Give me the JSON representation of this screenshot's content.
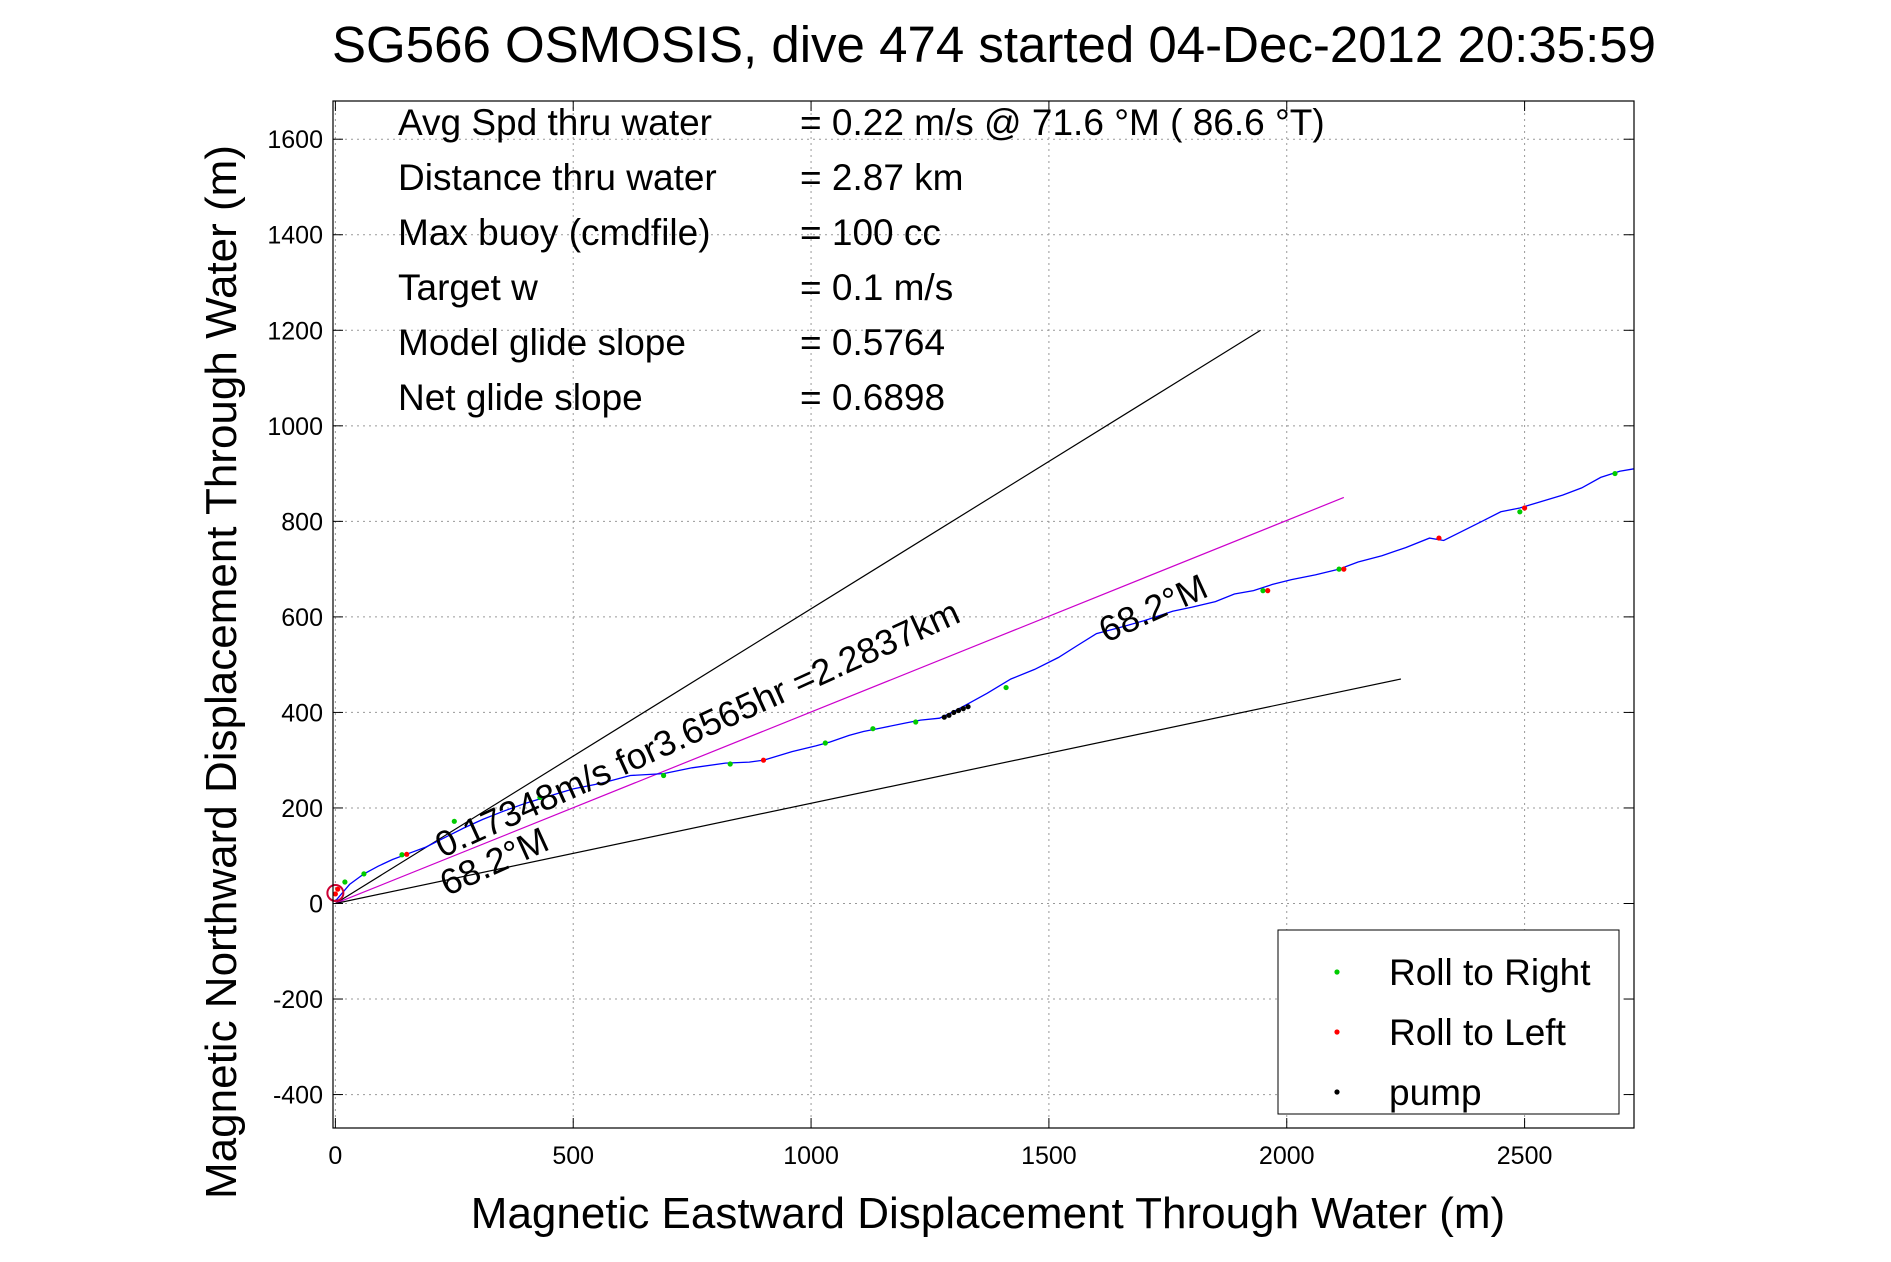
{
  "chart_data": {
    "type": "line",
    "title": "SG566 OSMOSIS, dive 474 started 04-Dec-2012 20:35:59",
    "xlabel": "Magnetic Eastward Displacement Through Water (m)",
    "ylabel": "Magnetic Northward Displacement Through Water (m)",
    "xlim": [
      -5,
      2730
    ],
    "ylim": [
      -470,
      1680
    ],
    "xticks": [
      0,
      500,
      1000,
      1500,
      2000,
      2500
    ],
    "yticks": [
      -400,
      -200,
      0,
      200,
      400,
      600,
      800,
      1000,
      1200,
      1400,
      1600
    ],
    "grid": true,
    "legend_position": "bottom-right",
    "stats": [
      {
        "label": "Avg Spd thru water",
        "value": "=  0.22 m/s @  71.6 °M ( 86.6 °T)"
      },
      {
        "label": "Distance thru water",
        "value": "=  2.87 km"
      },
      {
        "label": "Max buoy (cmdfile)",
        "value": "= 100 cc"
      },
      {
        "label": "Target w",
        "value": "= 0.1 m/s"
      },
      {
        "label": "Model glide slope",
        "value": "= 0.5764"
      },
      {
        "label": "Net glide slope",
        "value": "= 0.6898"
      }
    ],
    "annotations": [
      {
        "text": "0.17348m/s for3.6565hr =2.2837km",
        "x": 225,
        "y": 95,
        "angle_deg": 24.5
      },
      {
        "text": "68.2°M",
        "x": 235,
        "y": 15,
        "angle_deg": 24.5
      },
      {
        "text": "68.2°M",
        "x": 1620,
        "y": 545,
        "angle_deg": 24.5
      }
    ],
    "series": [
      {
        "name": "track",
        "color": "#0000ff",
        "x": [
          0,
          30,
          60,
          90,
          120,
          155,
          190,
          230,
          270,
          310,
          350,
          400,
          450,
          500,
          560,
          620,
          690,
          750,
          820,
          870,
          900,
          960,
          1010,
          1040,
          1080,
          1110,
          1150,
          1200,
          1230,
          1270,
          1300,
          1330,
          1370,
          1420,
          1470,
          1520,
          1560,
          1600,
          1650,
          1700,
          1760,
          1800,
          1850,
          1890,
          1930,
          1970,
          2010,
          2060,
          2110,
          2150,
          2200,
          2250,
          2300,
          2330,
          2370,
          2410,
          2450,
          2490,
          2530,
          2580,
          2620,
          2660,
          2700,
          2730
        ],
        "y": [
          5,
          40,
          62,
          78,
          92,
          105,
          118,
          138,
          158,
          176,
          192,
          210,
          225,
          240,
          252,
          268,
          272,
          284,
          294,
          296,
          300,
          318,
          330,
          338,
          352,
          360,
          368,
          378,
          384,
          388,
          402,
          418,
          440,
          470,
          490,
          515,
          540,
          565,
          578,
          592,
          612,
          620,
          632,
          648,
          655,
          668,
          678,
          688,
          700,
          715,
          728,
          745,
          765,
          760,
          780,
          800,
          820,
          828,
          840,
          855,
          870,
          892,
          905,
          910
        ]
      },
      {
        "name": "Roll to Right",
        "marker": "dot",
        "color": "#00cc00",
        "x": [
          20,
          60,
          140,
          250,
          430,
          690,
          830,
          1030,
          1130,
          1220,
          1410,
          1950,
          2110,
          2490,
          2690
        ],
        "y": [
          45,
          62,
          102,
          172,
          222,
          268,
          292,
          336,
          366,
          380,
          452,
          655,
          700,
          820,
          900
        ]
      },
      {
        "name": "Roll to Left",
        "marker": "dot",
        "color": "#ff0000",
        "x": [
          0,
          5,
          150,
          900,
          1960,
          2120,
          2320,
          2500
        ],
        "y": [
          20,
          30,
          103,
          300,
          655,
          700,
          765,
          828
        ]
      },
      {
        "name": "pump",
        "marker": "dot",
        "color": "#000000",
        "x": [
          1280,
          1290,
          1300,
          1310,
          1320,
          1330
        ],
        "y": [
          390,
          394,
          400,
          404,
          408,
          412
        ]
      }
    ],
    "reference_lines": [
      {
        "color": "#000000",
        "x": [
          0,
          1945
        ],
        "y": [
          0,
          1200
        ]
      },
      {
        "color": "#cc00cc",
        "x": [
          0,
          2120
        ],
        "y": [
          0,
          850
        ]
      },
      {
        "color": "#000000",
        "x": [
          0,
          2240
        ],
        "y": [
          0,
          470
        ]
      }
    ],
    "start_circle": {
      "color": "#cc0033",
      "x": 0,
      "y": 22
    }
  }
}
